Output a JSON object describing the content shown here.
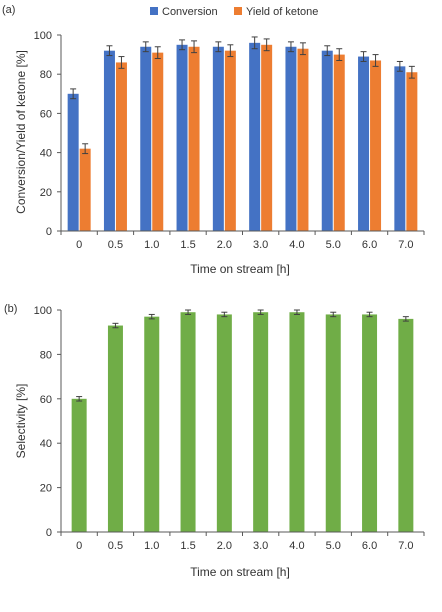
{
  "panel_a_label": "(a)",
  "panel_b_label": "(b)",
  "chart_data": [
    {
      "type": "bar",
      "panel": "(a)",
      "categories": [
        "0",
        "0.5",
        "1.0",
        "1.5",
        "2.0",
        "3.0",
        "4.0",
        "5.0",
        "6.0",
        "7.0"
      ],
      "series": [
        {
          "name": "Conversion",
          "color": "#4472c4",
          "values": [
            70,
            92,
            94,
            95,
            94,
            96,
            94,
            92,
            89,
            84
          ],
          "errors": [
            2.5,
            2.5,
            2.5,
            2.5,
            2.5,
            3,
            2.5,
            2.5,
            2.5,
            2.5
          ]
        },
        {
          "name": "Yield of ketone",
          "color": "#ed7d31",
          "values": [
            42,
            86,
            91,
            94,
            92,
            95,
            93,
            90,
            87,
            81
          ],
          "errors": [
            2.5,
            3,
            3,
            3,
            3,
            3,
            3,
            3,
            3,
            3
          ]
        }
      ],
      "xlabel": "Time on stream [h]",
      "ylabel": "Conversion/Yield of ketone [%]",
      "ylim": [
        0,
        100
      ],
      "yticks": [
        0,
        20,
        40,
        60,
        80,
        100
      ],
      "grid": false,
      "legend": "top-center"
    },
    {
      "type": "bar",
      "panel": "(b)",
      "categories": [
        "0",
        "0.5",
        "1.0",
        "1.5",
        "2.0",
        "3.0",
        "4.0",
        "5.0",
        "6.0",
        "7.0"
      ],
      "series": [
        {
          "color": "#70ad47",
          "values": [
            60,
            93,
            97,
            99,
            98,
            99,
            99,
            98,
            98,
            96
          ],
          "errors": [
            1,
            1,
            1,
            1,
            1,
            1,
            1,
            1,
            1,
            1
          ]
        }
      ],
      "xlabel": "Time on stream [h]",
      "ylabel": "Selectivity [%]",
      "ylim": [
        0,
        100
      ],
      "yticks": [
        0,
        20,
        40,
        60,
        80,
        100
      ],
      "grid": false,
      "legend": "none"
    }
  ]
}
